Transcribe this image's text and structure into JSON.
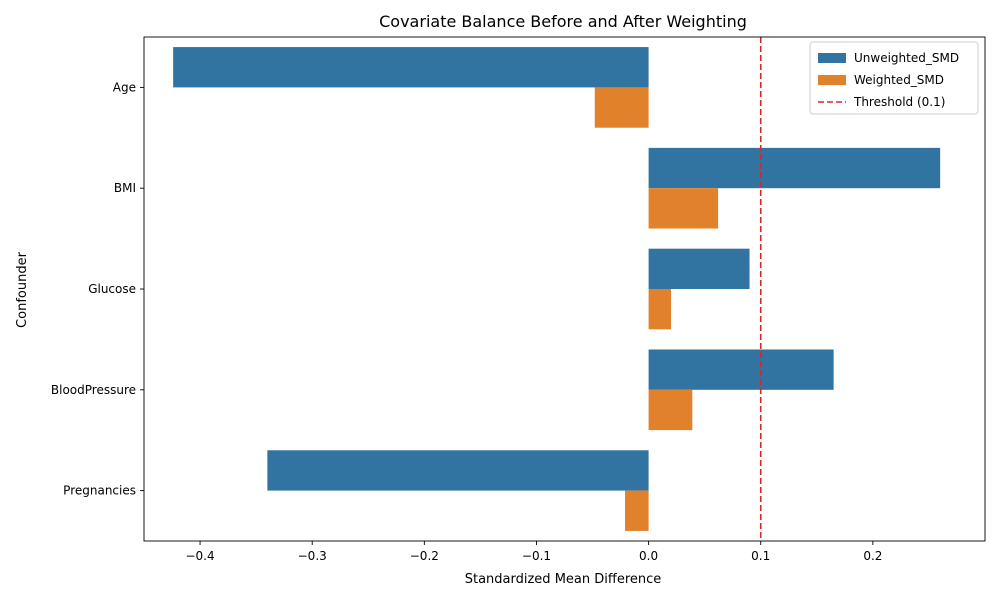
{
  "chart_data": {
    "type": "bar",
    "orientation": "horizontal",
    "title": "Covariate Balance Before and After Weighting",
    "xlabel": "Standardized Mean Difference",
    "ylabel": "Confounder",
    "categories": [
      "Age",
      "BMI",
      "Glucose",
      "BloodPressure",
      "Pregnancies"
    ],
    "series": [
      {
        "name": "Unweighted_SMD",
        "color": "#3274a1",
        "values": [
          -0.424,
          0.26,
          0.09,
          0.165,
          -0.34
        ]
      },
      {
        "name": "Weighted_SMD",
        "color": "#e1812c",
        "values": [
          -0.048,
          0.062,
          0.02,
          0.039,
          -0.021
        ]
      }
    ],
    "threshold": {
      "label": "Threshold (0.1)",
      "value": 0.1,
      "color": "#d62728",
      "style": "dashed"
    },
    "xlim": [
      -0.45,
      0.3
    ],
    "xticks": [
      -0.4,
      -0.3,
      -0.2,
      -0.1,
      0.0,
      0.1,
      0.2
    ],
    "xtick_labels": [
      "−0.4",
      "−0.3",
      "−0.2",
      "−0.1",
      "0.0",
      "0.1",
      "0.2"
    ],
    "legend": {
      "position": "top-right"
    },
    "grid": false
  }
}
